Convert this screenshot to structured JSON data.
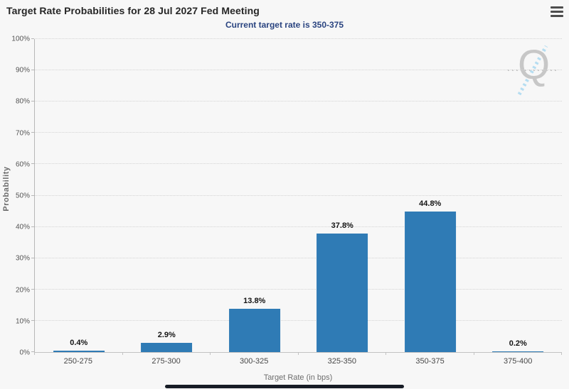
{
  "header": {
    "title": "Target Rate Probabilities for 28 Jul 2027 Fed Meeting",
    "subtitle": "Current target rate is 350-375"
  },
  "watermark": {
    "letter": "Q"
  },
  "chart_data": {
    "type": "bar",
    "title": "Target Rate Probabilities for 28 Jul 2027 Fed Meeting",
    "subtitle": "Current target rate is 350-375",
    "categories": [
      "250-275",
      "275-300",
      "300-325",
      "325-350",
      "350-375",
      "375-400"
    ],
    "values": [
      0.4,
      2.9,
      13.8,
      37.8,
      44.8,
      0.2
    ],
    "value_labels": [
      "0.4%",
      "2.9%",
      "13.8%",
      "37.8%",
      "44.8%",
      "0.2%"
    ],
    "xlabel": "Target Rate (in bps)",
    "ylabel": "Probability",
    "ylim": [
      0,
      100
    ],
    "ytick_step": 10,
    "ytick_labels": [
      "0%",
      "10%",
      "20%",
      "30%",
      "40%",
      "50%",
      "60%",
      "70%",
      "80%",
      "90%",
      "100%"
    ],
    "grid": "horizontal-dotted",
    "legend": "none",
    "bar_color": "#2f7bb5"
  },
  "colors": {
    "background": "#f7f7f7",
    "bar": "#2f7bb5",
    "subtitle_text": "#2a4480",
    "title_text": "#262626"
  }
}
